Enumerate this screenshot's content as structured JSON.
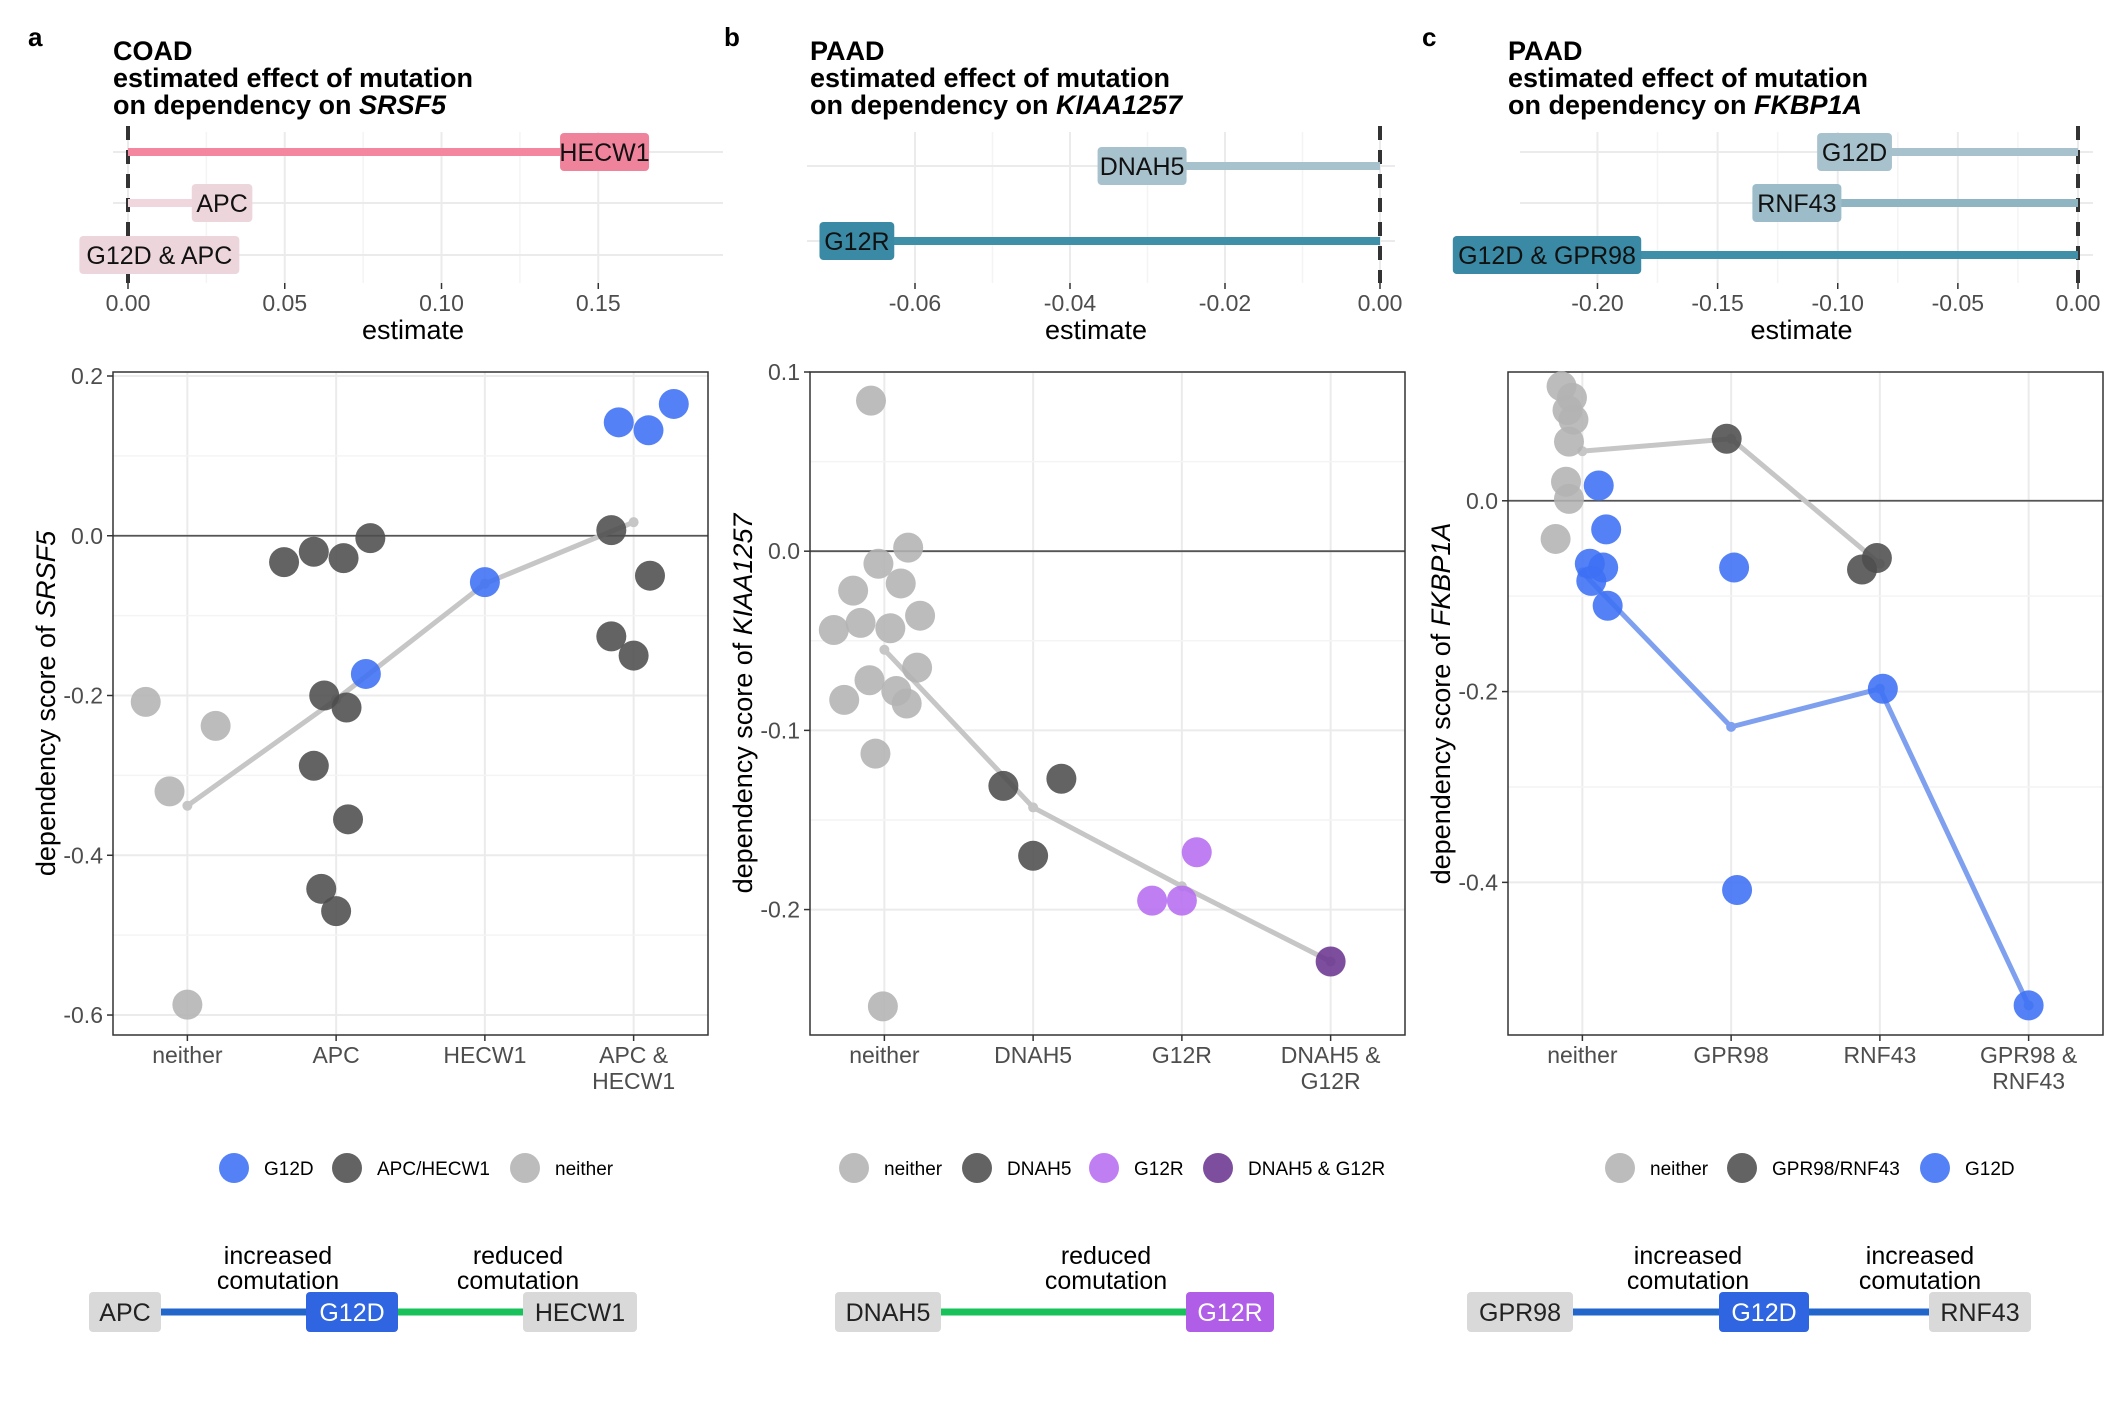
{
  "panels": [
    {
      "letter": "a",
      "title": {
        "line1": "COAD",
        "line2": "estimated effect of mutation",
        "line3_prefix": "on dependency on ",
        "gene": "SRSF5"
      },
      "estimate_axis_label": "estimate",
      "scatter_ylabel_prefix": "dependency score of ",
      "legend": [
        {
          "label": "G12D",
          "color": "#3d6ff5"
        },
        {
          "label": "APC/HECW1",
          "color": "#4d4d4d"
        },
        {
          "label": "neither",
          "color": "#b3b3b3"
        }
      ],
      "network": {
        "labels": [
          {
            "text": "increased",
            "text2": "comutation"
          },
          {
            "text": "reduced",
            "text2": "comutation"
          }
        ],
        "nodes": [
          {
            "text": "APC",
            "fill": "#d9d9d9",
            "text_color": "#222222"
          },
          {
            "text": "G12D",
            "fill": "#2f65e0",
            "text_color": "#ffffff"
          },
          {
            "text": "HECW1",
            "fill": "#d9d9d9",
            "text_color": "#222222"
          }
        ],
        "edges": [
          {
            "color": "#2266cc"
          },
          {
            "color": "#19c15a"
          }
        ]
      }
    },
    {
      "letter": "b",
      "title": {
        "line1": "PAAD",
        "line2": "estimated effect of mutation",
        "line3_prefix": "on dependency on ",
        "gene": "KIAA1257"
      },
      "estimate_axis_label": "estimate",
      "scatter_ylabel_prefix": "dependency score of ",
      "legend": [
        {
          "label": "neither",
          "color": "#b3b3b3"
        },
        {
          "label": "DNAH5",
          "color": "#4d4d4d"
        },
        {
          "label": "G12R",
          "color": "#b66df0"
        },
        {
          "label": "DNAH5 & G12R",
          "color": "#6b3590"
        }
      ],
      "network": {
        "labels": [
          {
            "text": "reduced",
            "text2": "comutation"
          }
        ],
        "nodes": [
          {
            "text": "DNAH5",
            "fill": "#d9d9d9",
            "text_color": "#222222"
          },
          {
            "text": "G12R",
            "fill": "#b05ee8",
            "text_color": "#ffffff"
          }
        ],
        "edges": [
          {
            "color": "#19c15a"
          }
        ]
      }
    },
    {
      "letter": "c",
      "title": {
        "line1": "PAAD",
        "line2": "estimated effect of mutation",
        "line3_prefix": "on dependency on ",
        "gene": "FKBP1A"
      },
      "estimate_axis_label": "estimate",
      "scatter_ylabel_prefix": "dependency score of ",
      "legend": [
        {
          "label": "neither",
          "color": "#b3b3b3"
        },
        {
          "label": "GPR98/RNF43",
          "color": "#4d4d4d"
        },
        {
          "label": "G12D",
          "color": "#3d6ff5"
        }
      ],
      "network": {
        "labels": [
          {
            "text": "increased",
            "text2": "comutation"
          },
          {
            "text": "increased",
            "text2": "comutation"
          }
        ],
        "nodes": [
          {
            "text": "GPR98",
            "fill": "#d9d9d9",
            "text_color": "#222222"
          },
          {
            "text": "G12D",
            "fill": "#2f65e0",
            "text_color": "#ffffff"
          },
          {
            "text": "RNF43",
            "fill": "#d9d9d9",
            "text_color": "#222222"
          }
        ],
        "edges": [
          {
            "color": "#2266cc"
          },
          {
            "color": "#2266cc"
          }
        ]
      }
    }
  ],
  "chart_data": [
    {
      "panel": "a",
      "type": "bar",
      "subtype": "lollipop",
      "categories": [
        "HECW1",
        "APC",
        "G12D & APC"
      ],
      "values": [
        0.152,
        0.03,
        0.01
      ],
      "bar_colors": [
        "#f4879f",
        "#f0d7de",
        "#f0d7de"
      ],
      "label_colors": [
        "#f0839c",
        "#ecd6dc",
        "#ecd6dc"
      ],
      "xlabel": "estimate",
      "xlim": [
        0,
        0.185
      ],
      "xticks": [
        0.0,
        0.05,
        0.1,
        0.15
      ],
      "xtick_labels": [
        "0.00",
        "0.05",
        "0.10",
        "0.15"
      ]
    },
    {
      "panel": "a",
      "type": "scatter",
      "categories": [
        "neither",
        "APC",
        "HECW1",
        "APC &\nHECW1"
      ],
      "ylabel_gene": "SRSF5",
      "ylim": [
        -0.625,
        0.205
      ],
      "yticks": [
        0.2,
        0.0,
        -0.2,
        -0.4,
        -0.6
      ],
      "ytick_labels": [
        "0.2",
        "0.0",
        "-0.2",
        "-0.4",
        "-0.6"
      ],
      "points": [
        {
          "x": 0,
          "dx": -0.28,
          "y": -0.208,
          "group": "neither"
        },
        {
          "x": 0,
          "dx": 0.19,
          "y": -0.238,
          "group": "neither"
        },
        {
          "x": 0,
          "dx": -0.12,
          "y": -0.32,
          "group": "neither"
        },
        {
          "x": 0,
          "dx": 0.0,
          "y": -0.587,
          "group": "neither"
        },
        {
          "x": 1,
          "dx": -0.35,
          "y": -0.033,
          "group": "APC/HECW1"
        },
        {
          "x": 1,
          "dx": -0.15,
          "y": -0.02,
          "group": "APC/HECW1"
        },
        {
          "x": 1,
          "dx": 0.05,
          "y": -0.028,
          "group": "APC/HECW1"
        },
        {
          "x": 1,
          "dx": 0.23,
          "y": -0.003,
          "group": "APC/HECW1"
        },
        {
          "x": 1,
          "dx": -0.08,
          "y": -0.2,
          "group": "APC/HECW1"
        },
        {
          "x": 1,
          "dx": 0.07,
          "y": -0.215,
          "group": "APC/HECW1"
        },
        {
          "x": 1,
          "dx": -0.15,
          "y": -0.288,
          "group": "APC/HECW1"
        },
        {
          "x": 1,
          "dx": 0.08,
          "y": -0.355,
          "group": "APC/HECW1"
        },
        {
          "x": 1,
          "dx": -0.1,
          "y": -0.442,
          "group": "APC/HECW1"
        },
        {
          "x": 1,
          "dx": 0.0,
          "y": -0.47,
          "group": "APC/HECW1"
        },
        {
          "x": 1,
          "dx": 0.2,
          "y": -0.173,
          "group": "G12D"
        },
        {
          "x": 2,
          "dx": 0.0,
          "y": -0.058,
          "group": "G12D"
        },
        {
          "x": 3,
          "dx": -0.1,
          "y": 0.142,
          "group": "G12D"
        },
        {
          "x": 3,
          "dx": 0.1,
          "y": 0.132,
          "group": "G12D"
        },
        {
          "x": 3,
          "dx": 0.27,
          "y": 0.165,
          "group": "G12D"
        },
        {
          "x": 3,
          "dx": -0.15,
          "y": 0.007,
          "group": "APC/HECW1"
        },
        {
          "x": 3,
          "dx": 0.11,
          "y": -0.05,
          "group": "APC/HECW1"
        },
        {
          "x": 3,
          "dx": -0.15,
          "y": -0.126,
          "group": "APC/HECW1"
        },
        {
          "x": 3,
          "dx": 0.0,
          "y": -0.15,
          "group": "APC/HECW1"
        }
      ],
      "trend_lines": [
        {
          "color": "#c6c6c6",
          "points": [
            [
              0,
              0.0,
              -0.338
            ],
            [
              1,
              0.0,
              -0.205
            ],
            [
              2,
              0.0,
              -0.06
            ],
            [
              3,
              0.0,
              0.017
            ]
          ]
        }
      ]
    },
    {
      "panel": "b",
      "type": "bar",
      "subtype": "lollipop",
      "categories": [
        "DNAH5",
        "G12R"
      ],
      "values": [
        -0.0307,
        -0.0675
      ],
      "bar_colors": [
        "#a8c2cd",
        "#3f8fa8"
      ],
      "label_colors": [
        "#a8c2cd",
        "#3a8aa5"
      ],
      "xlabel": "estimate",
      "xlim": [
        -0.072,
        0.0
      ],
      "xticks": [
        -0.06,
        -0.04,
        -0.02,
        0.0
      ],
      "xtick_labels": [
        "-0.06",
        "-0.04",
        "-0.02",
        "0.00"
      ]
    },
    {
      "panel": "b",
      "type": "scatter",
      "categories": [
        "neither",
        "DNAH5",
        "G12R",
        "DNAH5 &\nG12R"
      ],
      "ylabel_gene": "KIAA1257",
      "ylim": [
        -0.27,
        0.1
      ],
      "yticks": [
        0.1,
        0.0,
        -0.1,
        -0.2
      ],
      "ytick_labels": [
        "0.1",
        "0.0",
        "-0.1",
        "-0.2"
      ],
      "points": [
        {
          "x": 0,
          "dx": -0.09,
          "y": 0.084,
          "group": "neither"
        },
        {
          "x": 0,
          "dx": 0.16,
          "y": 0.002,
          "group": "neither"
        },
        {
          "x": 0,
          "dx": -0.04,
          "y": -0.007,
          "group": "neither"
        },
        {
          "x": 0,
          "dx": -0.21,
          "y": -0.022,
          "group": "neither"
        },
        {
          "x": 0,
          "dx": 0.11,
          "y": -0.018,
          "group": "neither"
        },
        {
          "x": 0,
          "dx": -0.16,
          "y": -0.04,
          "group": "neither"
        },
        {
          "x": 0,
          "dx": 0.24,
          "y": -0.036,
          "group": "neither"
        },
        {
          "x": 0,
          "dx": -0.34,
          "y": -0.044,
          "group": "neither"
        },
        {
          "x": 0,
          "dx": 0.04,
          "y": -0.043,
          "group": "neither"
        },
        {
          "x": 0,
          "dx": 0.22,
          "y": -0.065,
          "group": "neither"
        },
        {
          "x": 0,
          "dx": -0.1,
          "y": -0.072,
          "group": "neither"
        },
        {
          "x": 0,
          "dx": 0.08,
          "y": -0.078,
          "group": "neither"
        },
        {
          "x": 0,
          "dx": 0.15,
          "y": -0.085,
          "group": "neither"
        },
        {
          "x": 0,
          "dx": -0.27,
          "y": -0.083,
          "group": "neither"
        },
        {
          "x": 0,
          "dx": -0.06,
          "y": -0.113,
          "group": "neither"
        },
        {
          "x": 0,
          "dx": -0.01,
          "y": -0.254,
          "group": "neither"
        },
        {
          "x": 1,
          "dx": -0.2,
          "y": -0.131,
          "group": "DNAH5"
        },
        {
          "x": 1,
          "dx": 0.19,
          "y": -0.127,
          "group": "DNAH5"
        },
        {
          "x": 1,
          "dx": 0.0,
          "y": -0.17,
          "group": "DNAH5"
        },
        {
          "x": 2,
          "dx": 0.1,
          "y": -0.168,
          "group": "G12R"
        },
        {
          "x": 2,
          "dx": -0.2,
          "y": -0.195,
          "group": "G12R"
        },
        {
          "x": 2,
          "dx": 0.0,
          "y": -0.195,
          "group": "G12R"
        },
        {
          "x": 3,
          "dx": 0.0,
          "y": -0.229,
          "group": "DNAH5 & G12R"
        }
      ],
      "trend_lines": [
        {
          "color": "#c6c6c6",
          "points": [
            [
              0,
              0.0,
              -0.055
            ],
            [
              1,
              0.0,
              -0.143
            ],
            [
              2,
              0.0,
              -0.187
            ],
            [
              3,
              0.0,
              -0.229
            ]
          ]
        }
      ]
    },
    {
      "panel": "c",
      "type": "bar",
      "subtype": "lollipop",
      "categories": [
        "G12D",
        "RNF43",
        "G12D & GPR98"
      ],
      "values": [
        -0.093,
        -0.117,
        -0.221
      ],
      "bar_colors": [
        "#a8c2cd",
        "#8fb5c2",
        "#3f8fa8"
      ],
      "label_colors": [
        "#a8c2cd",
        "#9bbcc8",
        "#3a8aa5"
      ],
      "xlabel": "estimate",
      "xlim": [
        -0.226,
        0.0
      ],
      "xticks": [
        -0.2,
        -0.15,
        -0.1,
        -0.05,
        0.0
      ],
      "xtick_labels": [
        "-0.20",
        "-0.15",
        "-0.10",
        "-0.05",
        "0.00"
      ]
    },
    {
      "panel": "c",
      "type": "scatter",
      "categories": [
        "neither",
        "GPR98",
        "RNF43",
        "GPR98 &\nRNF43"
      ],
      "ylabel_gene": "FKBP1A",
      "ylim": [
        -0.56,
        0.135
      ],
      "yticks": [
        0.0,
        -0.2,
        -0.4
      ],
      "ytick_labels": [
        "0.0",
        "-0.2",
        "-0.4"
      ],
      "points": [
        {
          "x": 0,
          "dx": -0.14,
          "y": 0.12,
          "group": "neither"
        },
        {
          "x": 0,
          "dx": -0.07,
          "y": 0.108,
          "group": "neither"
        },
        {
          "x": 0,
          "dx": -0.1,
          "y": 0.095,
          "group": "neither"
        },
        {
          "x": 0,
          "dx": -0.06,
          "y": 0.085,
          "group": "neither"
        },
        {
          "x": 0,
          "dx": -0.09,
          "y": 0.062,
          "group": "neither"
        },
        {
          "x": 0,
          "dx": -0.11,
          "y": 0.02,
          "group": "neither"
        },
        {
          "x": 0,
          "dx": -0.09,
          "y": 0.002,
          "group": "neither"
        },
        {
          "x": 0,
          "dx": -0.18,
          "y": -0.04,
          "group": "neither"
        },
        {
          "x": 1,
          "dx": -0.03,
          "y": 0.065,
          "group": "GPR98/RNF43"
        },
        {
          "x": 2,
          "dx": -0.12,
          "y": -0.072,
          "group": "GPR98/RNF43"
        },
        {
          "x": 2,
          "dx": -0.02,
          "y": -0.06,
          "group": "GPR98/RNF43"
        },
        {
          "x": 0,
          "dx": 0.11,
          "y": 0.016,
          "group": "G12D"
        },
        {
          "x": 0,
          "dx": 0.16,
          "y": -0.03,
          "group": "G12D"
        },
        {
          "x": 0,
          "dx": 0.05,
          "y": -0.066,
          "group": "G12D"
        },
        {
          "x": 0,
          "dx": 0.14,
          "y": -0.07,
          "group": "G12D"
        },
        {
          "x": 0,
          "dx": 0.06,
          "y": -0.084,
          "group": "G12D"
        },
        {
          "x": 0,
          "dx": 0.17,
          "y": -0.11,
          "group": "G12D"
        },
        {
          "x": 1,
          "dx": 0.02,
          "y": -0.07,
          "group": "G12D"
        },
        {
          "x": 1,
          "dx": 0.04,
          "y": -0.408,
          "group": "G12D"
        },
        {
          "x": 2,
          "dx": 0.02,
          "y": -0.197,
          "group": "G12D"
        },
        {
          "x": 3,
          "dx": 0.0,
          "y": -0.529,
          "group": "G12D"
        }
      ],
      "trend_lines": [
        {
          "color": "#c6c6c6",
          "points": [
            [
              0,
              0.0,
              0.052
            ],
            [
              1,
              0.0,
              0.065
            ],
            [
              2,
              0.0,
              -0.066
            ]
          ]
        },
        {
          "color": "#7ea0ee",
          "points": [
            [
              0,
              0.0,
              -0.075
            ],
            [
              1,
              0.0,
              -0.237
            ],
            [
              2,
              0.0,
              -0.197
            ],
            [
              3,
              0.0,
              -0.529
            ]
          ]
        }
      ]
    }
  ]
}
